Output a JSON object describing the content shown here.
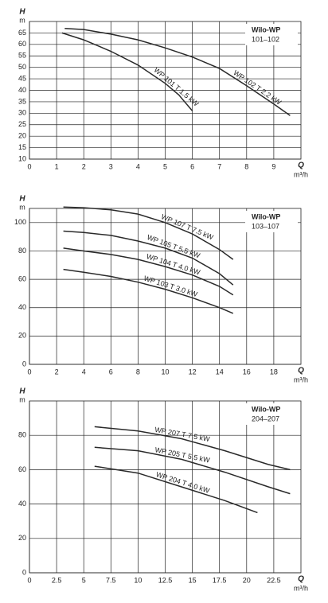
{
  "chart_data": [
    {
      "type": "line",
      "title": "Wilo-WP",
      "subtitle": "101–102",
      "y_label": "H",
      "y_unit": "m",
      "x_label": "Q",
      "x_unit": "m³/h",
      "xlim": [
        0,
        10
      ],
      "ylim": [
        10,
        70
      ],
      "xticks": [
        0,
        1,
        2,
        3,
        4,
        5,
        6,
        7,
        8,
        9
      ],
      "yticks": [
        10,
        15,
        20,
        25,
        30,
        35,
        40,
        45,
        50,
        55,
        60,
        65
      ],
      "grid": true,
      "series": [
        {
          "name": "WP 101 T 1.5 kW",
          "color": "#2a2a2a",
          "x": [
            1.2,
            2,
            3,
            4,
            5,
            5.5,
            6
          ],
          "values": [
            65,
            62,
            57,
            51,
            43,
            38,
            31
          ]
        },
        {
          "name": "WP 102 T 2.2 kW",
          "color": "#2a2a2a",
          "x": [
            1.3,
            2,
            3,
            4,
            5,
            6,
            7,
            8,
            9,
            9.6
          ],
          "values": [
            67,
            66.5,
            64.5,
            62,
            58.5,
            54.5,
            49.5,
            42,
            34,
            29
          ]
        }
      ]
    },
    {
      "type": "line",
      "title": "Wilo-WP",
      "subtitle": "103–107",
      "y_label": "H",
      "y_unit": "m",
      "x_label": "Q",
      "x_unit": "m³/h",
      "xlim": [
        0,
        20
      ],
      "ylim": [
        0,
        110
      ],
      "xticks": [
        0,
        2,
        4,
        6,
        8,
        10,
        12,
        14,
        16,
        18
      ],
      "yticks": [
        0,
        20,
        40,
        60,
        80,
        100
      ],
      "grid": true,
      "series": [
        {
          "name": "WP 107 T 7.5 kW",
          "color": "#2a2a2a",
          "x": [
            2.5,
            4,
            6,
            8,
            10,
            12,
            14,
            15
          ],
          "values": [
            111,
            110.5,
            109,
            106,
            100,
            92,
            81,
            74
          ]
        },
        {
          "name": "WP 105 T 5.5 kW",
          "color": "#2a2a2a",
          "x": [
            2.5,
            4,
            6,
            8,
            10,
            12,
            14,
            15
          ],
          "values": [
            94,
            93,
            91,
            87,
            82,
            75,
            64,
            56
          ]
        },
        {
          "name": "WP 104 T 4.0 kW",
          "color": "#2a2a2a",
          "x": [
            2.5,
            4,
            6,
            8,
            10,
            12,
            14,
            15
          ],
          "values": [
            82,
            80,
            77.5,
            74,
            69,
            63,
            55,
            49
          ]
        },
        {
          "name": "WP 103 T 3.0 kW",
          "color": "#2a2a2a",
          "x": [
            2.5,
            4,
            6,
            8,
            10,
            12,
            14,
            15
          ],
          "values": [
            67,
            65,
            62,
            58,
            53,
            47,
            40,
            36
          ]
        }
      ]
    },
    {
      "type": "line",
      "title": "Wilo-WP",
      "subtitle": "204–207",
      "y_label": "H",
      "y_unit": "m",
      "x_label": "Q",
      "x_unit": "m³/h",
      "xlim": [
        0,
        25
      ],
      "ylim": [
        0,
        100
      ],
      "xticks": [
        0,
        2.5,
        5,
        7.5,
        10,
        12.5,
        15,
        17.5,
        20,
        22.5
      ],
      "yticks": [
        0,
        20,
        40,
        60,
        80
      ],
      "grid": true,
      "series": [
        {
          "name": "WP 207 T 7.5 kW",
          "color": "#2a2a2a",
          "x": [
            6,
            10,
            14,
            18,
            22,
            24
          ],
          "values": [
            85,
            82.5,
            78,
            71,
            63,
            60
          ]
        },
        {
          "name": "WP 205 T 5.5 kW",
          "color": "#2a2a2a",
          "x": [
            6,
            10,
            14,
            18,
            22,
            24
          ],
          "values": [
            73,
            71,
            66,
            58.5,
            50,
            46
          ]
        },
        {
          "name": "WP 204 T 4.0 kW",
          "color": "#2a2a2a",
          "x": [
            6,
            10,
            14,
            18,
            21
          ],
          "values": [
            62,
            58,
            50,
            42,
            35
          ]
        }
      ]
    }
  ]
}
